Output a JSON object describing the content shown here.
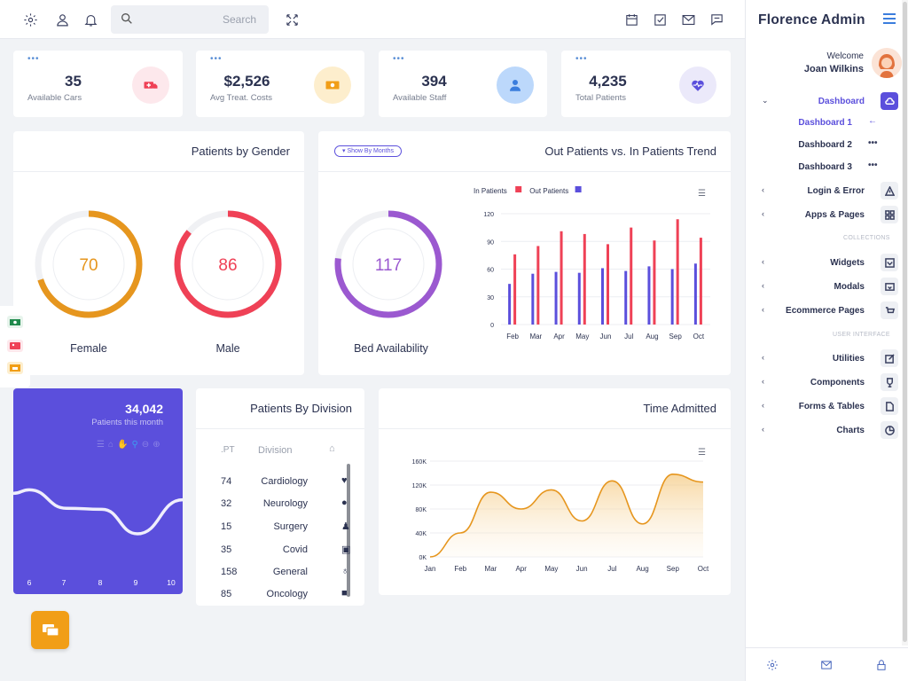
{
  "topbar": {
    "search_placeholder": "Search",
    "icons": [
      "gear-icon",
      "user-icon",
      "bell-icon",
      "search-icon",
      "expand-icon",
      "calendar-icon",
      "checkbox-icon",
      "mail-icon",
      "chat-icon"
    ]
  },
  "sidebar": {
    "brand": "Florence Admin",
    "welcome": "Welcome",
    "user_name": "Joan Wilkins",
    "nav": [
      {
        "label": "Dashboard",
        "icon": "cloud-icon",
        "active": true
      },
      {
        "label": "Login & Error",
        "icon": "warning-icon"
      },
      {
        "label": "Apps & Pages",
        "icon": "grid-icon"
      },
      {
        "label": "Widgets",
        "icon": "widget-icon"
      },
      {
        "label": "Modals",
        "icon": "modal-icon"
      },
      {
        "label": "Ecommerce Pages",
        "icon": "cart-icon"
      },
      {
        "label": "Utilities",
        "icon": "edit-icon"
      },
      {
        "label": "Components",
        "icon": "trophy-icon"
      },
      {
        "label": "Forms & Tables",
        "icon": "file-icon"
      },
      {
        "label": "Charts",
        "icon": "pie-icon"
      }
    ],
    "subnav": [
      {
        "label": "Dashboard 1",
        "active": true
      },
      {
        "label": "Dashboard 2"
      },
      {
        "label": "Dashboard 3"
      }
    ],
    "sections": [
      "COLLECTIONS",
      "USER INTERFACE"
    ],
    "footer_icons": [
      "gear-icon",
      "mail-icon",
      "lock-icon"
    ]
  },
  "stats": [
    {
      "value": "35",
      "label": "Available Cars",
      "color": "#fde8ec",
      "icon_color": "#ef4156"
    },
    {
      "value": "$2,526",
      "label": "Avg Treat. Costs",
      "color": "#fdeecd",
      "icon_color": "#f19e17"
    },
    {
      "value": "394",
      "label": "Available Staff",
      "color": "#cfe2fb",
      "icon_color": "#3b7ddd"
    },
    {
      "value": "4,235",
      "label": "Total Patients",
      "color": "#ebe9fa",
      "icon_color": "#5b4fdc"
    }
  ],
  "gender": {
    "title": "Patients by Gender",
    "rings": [
      {
        "value": 70,
        "label": "Female",
        "color": "#e6961e"
      },
      {
        "value": 86,
        "label": "Male",
        "color": "#ef4156"
      }
    ]
  },
  "trend": {
    "title": "Out Patients vs. In Patients Trend",
    "pill": "Show By Months",
    "bed": {
      "value": 117,
      "label": "Bed Availability",
      "color": "#9b59d0"
    }
  },
  "purple_card": {
    "value": "34,042",
    "label": "Patients this month",
    "xticks": [
      "6",
      "7",
      "8",
      "9",
      "10"
    ],
    "bg": "#5b4fdc"
  },
  "division": {
    "title": "Patients By Division",
    "headers": [
      ".PT",
      "Division"
    ],
    "rows": [
      {
        "n": "74",
        "d": "Cardiology",
        "icon": "heart-icon"
      },
      {
        "n": "32",
        "d": "Neurology",
        "icon": "user-icon"
      },
      {
        "n": "15",
        "d": "Surgery",
        "icon": "user-md-icon"
      },
      {
        "n": "35",
        "d": "Covid",
        "icon": "medkit-icon"
      },
      {
        "n": "158",
        "d": "General",
        "icon": "stethoscope-icon"
      },
      {
        "n": "85",
        "d": "Oncology",
        "icon": "square-icon"
      }
    ]
  },
  "time_admitted": {
    "title": "Time Admitted"
  },
  "chart_data": [
    {
      "type": "bar",
      "title": "",
      "categories": [
        "Feb",
        "Mar",
        "Apr",
        "May",
        "Jun",
        "Jul",
        "Aug",
        "Sep",
        "Oct"
      ],
      "series": [
        {
          "name": "In Patients",
          "color": "#ef4156",
          "values": [
            76,
            85,
            101,
            98,
            87,
            105,
            91,
            114,
            94
          ]
        },
        {
          "name": "Out Patients",
          "color": "#5b4fdc",
          "values": [
            44,
            55,
            57,
            56,
            61,
            58,
            63,
            60,
            66
          ]
        }
      ],
      "ylim": [
        0,
        120
      ],
      "yticks": [
        0,
        30,
        60,
        90,
        120
      ],
      "legend": "top-left",
      "grid": true
    },
    {
      "type": "area",
      "title": "",
      "categories": [
        "Jan",
        "Feb",
        "Mar",
        "Apr",
        "May",
        "Jun",
        "Jul",
        "Aug",
        "Sep",
        "Oct"
      ],
      "series": [
        {
          "color": "#e6961e",
          "values": [
            0,
            40000,
            108000,
            80000,
            112000,
            60000,
            127000,
            55000,
            138000,
            125000
          ]
        }
      ],
      "ylim": [
        0,
        160000
      ],
      "yticks": [
        "0K",
        "40K",
        "80K",
        "120K",
        "160K"
      ],
      "grid": true
    },
    {
      "type": "line",
      "title": "",
      "categories": [
        "6",
        "7",
        "8",
        "9",
        "10"
      ],
      "series": [
        {
          "color": "#ffffff",
          "values": [
            68,
            54,
            53,
            30,
            62
          ]
        }
      ],
      "legend": "none",
      "grid": false
    }
  ]
}
